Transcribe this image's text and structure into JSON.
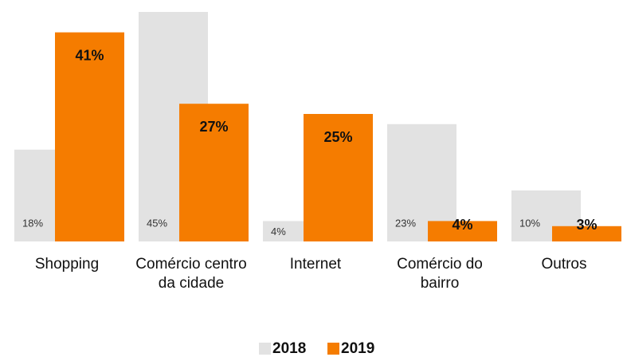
{
  "chart_data": {
    "type": "bar",
    "categories": [
      "Shopping",
      "Comércio centro da cidade",
      "Internet",
      "Comércio do bairro",
      "Outros"
    ],
    "series": [
      {
        "name": "2018",
        "color": "#e2e2e2",
        "values": [
          18,
          45,
          4,
          23,
          10
        ],
        "value_labels": [
          "18%",
          "45%",
          "4%",
          "23%",
          "10%"
        ]
      },
      {
        "name": "2019",
        "color": "#f57c00",
        "values": [
          41,
          27,
          25,
          4,
          3
        ],
        "value_labels": [
          "41%",
          "27%",
          "25%",
          "4%",
          "3%"
        ]
      }
    ],
    "ylim": [
      0,
      45
    ],
    "legend": "bottom"
  }
}
